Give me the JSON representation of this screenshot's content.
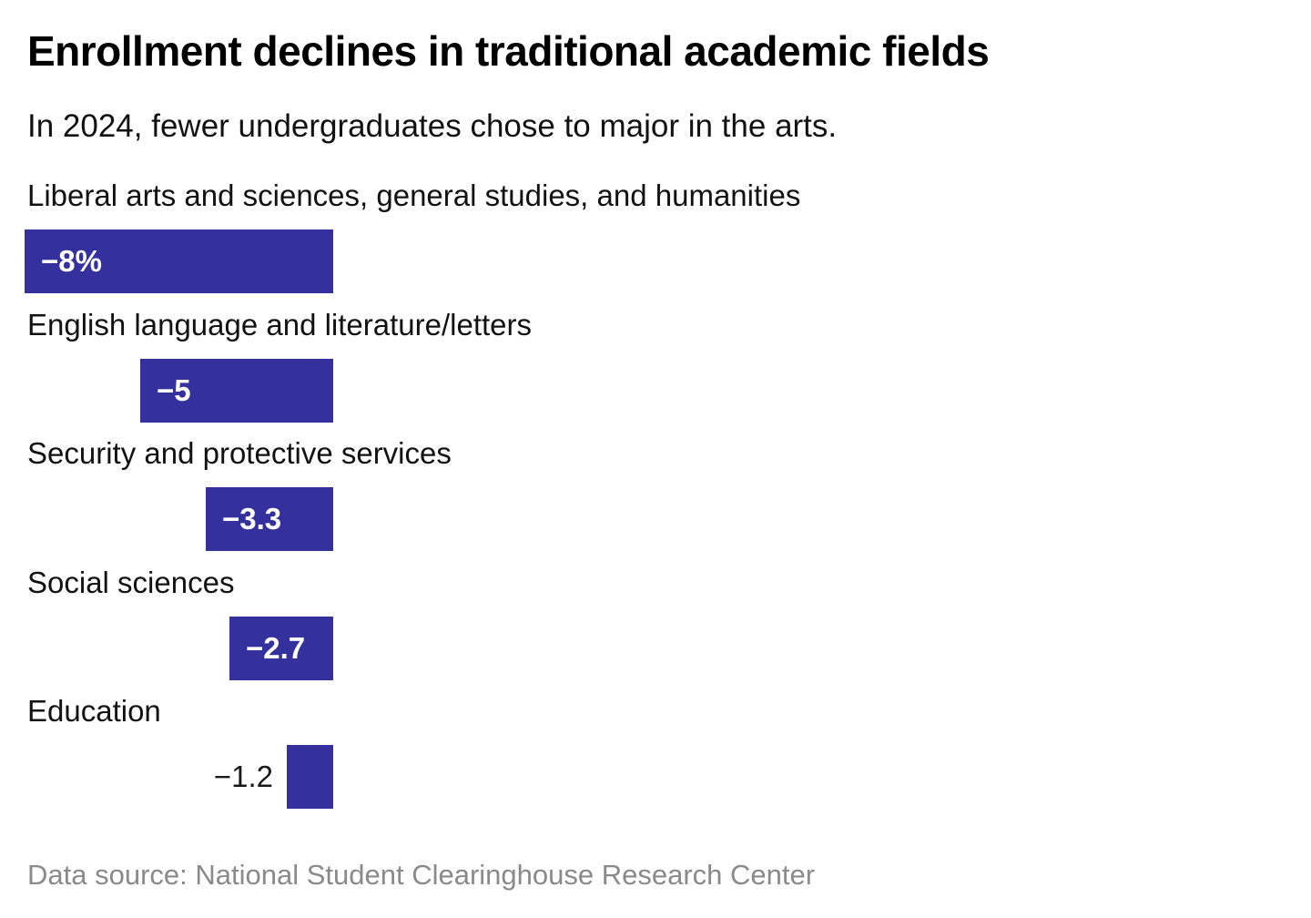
{
  "header": {
    "title": "Enrollment declines in traditional academic fields",
    "subtitle": "In 2024, fewer undergraduates chose to major in the arts."
  },
  "chart_data": {
    "type": "bar",
    "orientation": "horizontal",
    "title": "Enrollment declines in traditional academic fields",
    "subtitle": "In 2024, fewer undergraduates chose to major in the arts.",
    "categories": [
      "Liberal arts and sciences, general studies, and humanities",
      "English language and literature/letters",
      "Security and protective services",
      "Social sciences",
      "Education"
    ],
    "values": [
      -8,
      -5,
      -3.3,
      -2.7,
      -1.2
    ],
    "value_labels": [
      "−8%",
      "−5",
      "−3.3",
      "−2.7",
      "−1.2"
    ],
    "unit": "percent",
    "xlim": [
      -8,
      0
    ],
    "grid": false,
    "legend": "none",
    "bar_color": "#34309E",
    "inside_label_color": "#ffffff",
    "outside_label_color": "#1a1a1a",
    "source": "Data source: National Student Clearinghouse Research Center"
  },
  "footer": {
    "source": "Data source: National Student Clearinghouse Research Center"
  }
}
